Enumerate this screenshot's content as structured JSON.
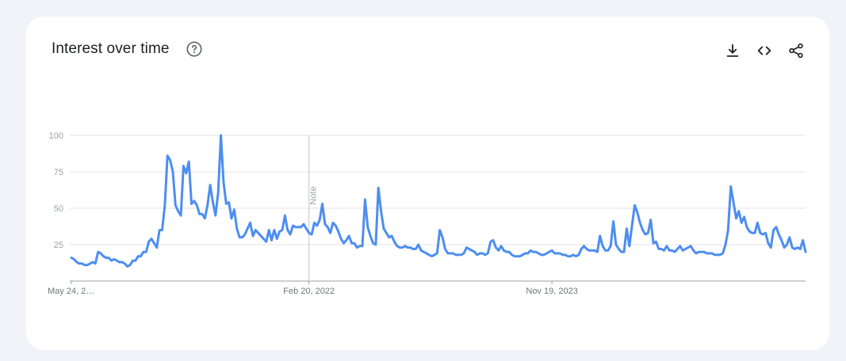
{
  "header": {
    "title": "Interest over time",
    "help_icon": "help-circle-icon",
    "toolbar": [
      {
        "name": "download-icon"
      },
      {
        "name": "embed-code-icon"
      },
      {
        "name": "share-icon"
      }
    ]
  },
  "colors": {
    "line": "#4d8ef0",
    "grid": "#e3e3e3",
    "axis": "#9aa0a6",
    "note_line": "#c6c6c6",
    "background": "#f1f3f8",
    "card": "#ffffff"
  },
  "chart_data": {
    "type": "line",
    "title": "",
    "xlabel": "",
    "ylabel": "",
    "ylim": [
      0,
      100
    ],
    "y_ticks": [
      25,
      50,
      75,
      100
    ],
    "x_tick_labels": [
      "May 24, 2…",
      "Feb 20, 2022",
      "Nov 19, 2023"
    ],
    "x_tick_points": [
      0,
      89,
      180
    ],
    "note": {
      "label": "Note",
      "at_point": 89
    },
    "grid": true,
    "series": [
      {
        "values": [
          16,
          15,
          13,
          12,
          12,
          11,
          11,
          12,
          13,
          12,
          20,
          19,
          17,
          16,
          16,
          14,
          15,
          14,
          13,
          13,
          12,
          10,
          11,
          14,
          14,
          17,
          17,
          20,
          20,
          27,
          29,
          26,
          23,
          35,
          35,
          52,
          86,
          83,
          75,
          52,
          48,
          45,
          79,
          74,
          82,
          53,
          55,
          52,
          46,
          46,
          43,
          52,
          66,
          54,
          45,
          61,
          100,
          68,
          53,
          54,
          43,
          49,
          36,
          30,
          30,
          32,
          36,
          40,
          31,
          35,
          33,
          31,
          29,
          27,
          35,
          28,
          35,
          29,
          34,
          35,
          45,
          35,
          32,
          38,
          37,
          37,
          37,
          39,
          36,
          33,
          32,
          40,
          38,
          42,
          53,
          39,
          37,
          33,
          40,
          38,
          34,
          29,
          26,
          28,
          31,
          26,
          26,
          23,
          24,
          24,
          56,
          37,
          31,
          26,
          25,
          64,
          48,
          36,
          33,
          30,
          31,
          27,
          24,
          23,
          23,
          24,
          23,
          23,
          22,
          22,
          25,
          21,
          20,
          19,
          18,
          17,
          18,
          19,
          35,
          30,
          22,
          19,
          19,
          19,
          18,
          18,
          18,
          19,
          23,
          22,
          21,
          20,
          18,
          19,
          19,
          18,
          19,
          27,
          28,
          23,
          21,
          24,
          21,
          20,
          20,
          18,
          17,
          17,
          17,
          18,
          19,
          19,
          21,
          20,
          20,
          19,
          18,
          18,
          19,
          20,
          21,
          19,
          19,
          19,
          18,
          18,
          17,
          17,
          18,
          17,
          18,
          22,
          24,
          22,
          21,
          21,
          21,
          20,
          31,
          24,
          21,
          21,
          24,
          41,
          25,
          22,
          20,
          20,
          36,
          24,
          38,
          52,
          47,
          40,
          35,
          32,
          33,
          42,
          26,
          27,
          22,
          22,
          21,
          24,
          21,
          21,
          20,
          22,
          24,
          21,
          22,
          23,
          24,
          21,
          19,
          20,
          20,
          20,
          19,
          19,
          19,
          18,
          18,
          18,
          19,
          25,
          35,
          65,
          54,
          43,
          48,
          40,
          44,
          37,
          34,
          33,
          33,
          40,
          33,
          32,
          33,
          26,
          23,
          35,
          37,
          32,
          28,
          23,
          25,
          30,
          23,
          22,
          23,
          22,
          28,
          20
        ]
      }
    ]
  }
}
